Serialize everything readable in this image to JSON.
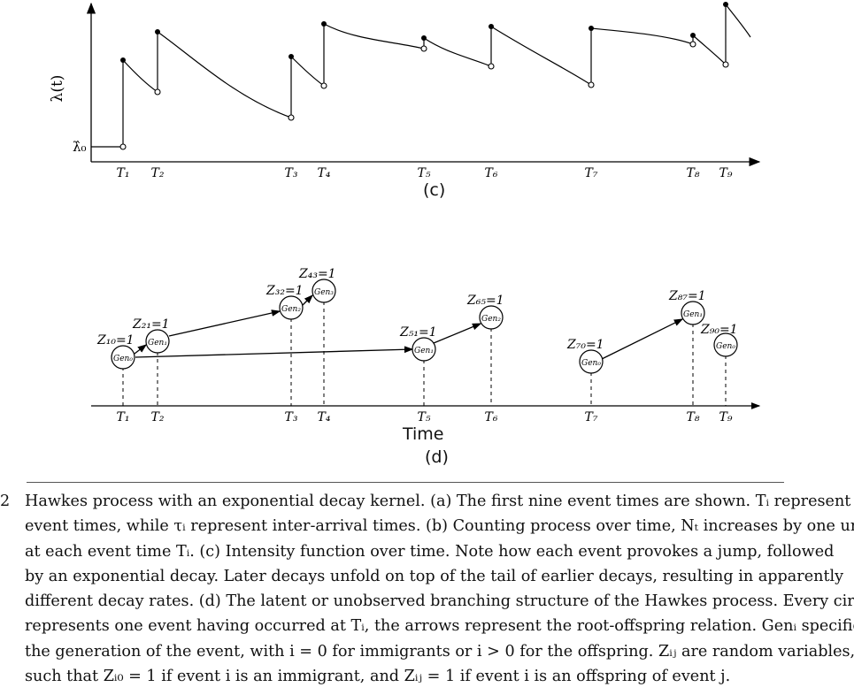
{
  "panel_c": {
    "y_label": "λ(t)",
    "baseline_label": "λ̂₀",
    "event_labels": [
      "T₁",
      "T₂",
      "T₃",
      "T₄",
      "T₅",
      "T₆",
      "T₇",
      "T₈",
      "T₉"
    ],
    "panel_label": "(c)"
  },
  "panel_d": {
    "x_label": "Time",
    "panel_label": "(d)",
    "event_labels": [
      "T₁",
      "T₂",
      "T₃",
      "T₄",
      "T₅",
      "T₆",
      "T₇",
      "T₈",
      "T₉"
    ],
    "nodes": [
      {
        "gen": "Gen₀",
        "z": "Z₁₀=1"
      },
      {
        "gen": "Gen₁",
        "z": "Z₂₁=1"
      },
      {
        "gen": "Gen₂",
        "z": "Z₃₂=1"
      },
      {
        "gen": "Gen₃",
        "z": "Z₄₃=1"
      },
      {
        "gen": "Gen₁",
        "z": "Z₅₁=1"
      },
      {
        "gen": "Gen₂",
        "z": "Z₆₅=1"
      },
      {
        "gen": "Gen₀",
        "z": "Z₇₀=1"
      },
      {
        "gen": "Gen₁",
        "z": "Z₈₇=1"
      },
      {
        "gen": "Gen₀",
        "z": "Z₉₀=1"
      }
    ]
  },
  "caption": {
    "figure_number": "2",
    "lines": [
      "Hawkes process with an exponential decay kernel. (a) The first nine event times are shown. Tᵢ represent",
      "event times, while τᵢ represent inter-arrival times. (b) Counting process over time, Nₜ increases by one unit",
      "at each event time Tᵢ. (c) Intensity function over time. Note how each event provokes a jump, followed",
      "by an exponential decay. Later decays unfold on top of the tail of earlier decays, resulting in apparently",
      "different decay rates. (d) The latent or unobserved branching structure of the Hawkes process. Every circle",
      "represents one event having occurred at Tᵢ, the arrows represent the root-offspring relation. Genᵢ specifies",
      "the generation of the event, with i = 0 for immigrants or i > 0 for the offspring. Zᵢⱼ are random variables,",
      "such that Zᵢ₀ = 1 if event i is an immigrant, and Zᵢⱼ = 1 if event i is an offspring of event j."
    ]
  }
}
